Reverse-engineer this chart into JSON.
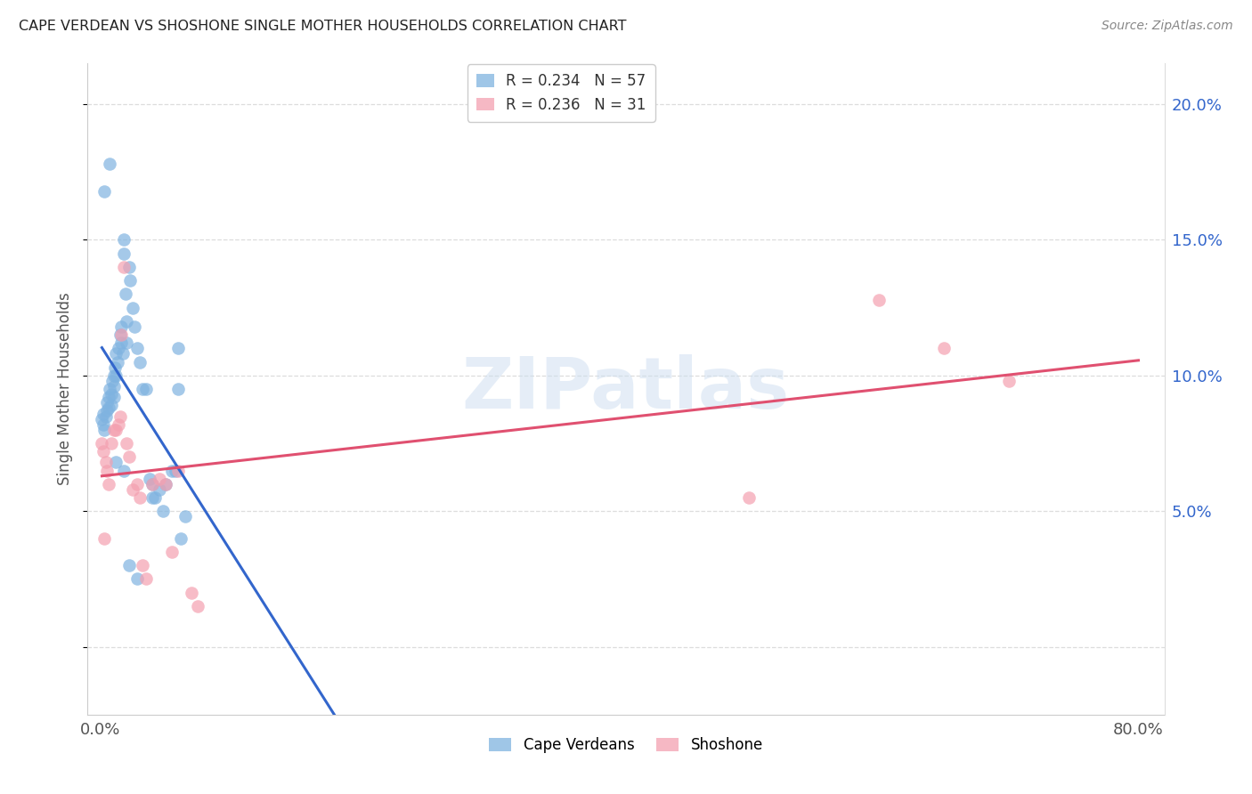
{
  "title": "CAPE VERDEAN VS SHOSHONE SINGLE MOTHER HOUSEHOLDS CORRELATION CHART",
  "source": "Source: ZipAtlas.com",
  "ylabel": "Single Mother Households",
  "xlim": [
    -0.01,
    0.82
  ],
  "ylim": [
    -0.025,
    0.215
  ],
  "yticks": [
    0.0,
    0.05,
    0.1,
    0.15,
    0.2
  ],
  "yticklabels_right": [
    "",
    "5.0%",
    "10.0%",
    "15.0%",
    "20.0%"
  ],
  "xtick_positions": [
    0.0,
    0.2,
    0.4,
    0.6,
    0.8
  ],
  "xticklabels": [
    "0.0%",
    "",
    "",
    "",
    "80.0%"
  ],
  "cape_verdean_color": "#7fb3e0",
  "shoshone_color": "#f4a0b0",
  "cape_verdean_line_color": "#3366cc",
  "shoshone_line_color": "#e05070",
  "R_cv": "0.234",
  "N_cv": "57",
  "R_sh": "0.236",
  "N_sh": "31",
  "watermark": "ZIPatlas",
  "cv_x": [
    0.001,
    0.002,
    0.002,
    0.003,
    0.004,
    0.005,
    0.005,
    0.006,
    0.006,
    0.007,
    0.008,
    0.008,
    0.009,
    0.01,
    0.01,
    0.01,
    0.011,
    0.012,
    0.012,
    0.013,
    0.014,
    0.015,
    0.016,
    0.016,
    0.017,
    0.018,
    0.018,
    0.019,
    0.02,
    0.02,
    0.022,
    0.023,
    0.025,
    0.026,
    0.028,
    0.03,
    0.032,
    0.035,
    0.038,
    0.04,
    0.042,
    0.045,
    0.048,
    0.05,
    0.055,
    0.058,
    0.06,
    0.062,
    0.065,
    0.003,
    0.007,
    0.012,
    0.018,
    0.022,
    0.028,
    0.06,
    0.04
  ],
  "cv_y": [
    0.084,
    0.082,
    0.086,
    0.08,
    0.085,
    0.09,
    0.087,
    0.088,
    0.092,
    0.095,
    0.089,
    0.093,
    0.098,
    0.092,
    0.096,
    0.1,
    0.103,
    0.1,
    0.108,
    0.105,
    0.11,
    0.115,
    0.112,
    0.118,
    0.108,
    0.145,
    0.15,
    0.13,
    0.12,
    0.112,
    0.14,
    0.135,
    0.125,
    0.118,
    0.11,
    0.105,
    0.095,
    0.095,
    0.062,
    0.06,
    0.055,
    0.058,
    0.05,
    0.06,
    0.065,
    0.065,
    0.11,
    0.04,
    0.048,
    0.168,
    0.178,
    0.068,
    0.065,
    0.03,
    0.025,
    0.095,
    0.055
  ],
  "sh_x": [
    0.001,
    0.002,
    0.003,
    0.004,
    0.005,
    0.006,
    0.008,
    0.01,
    0.012,
    0.014,
    0.015,
    0.016,
    0.018,
    0.02,
    0.022,
    0.025,
    0.028,
    0.03,
    0.032,
    0.035,
    0.04,
    0.045,
    0.05,
    0.055,
    0.06,
    0.07,
    0.075,
    0.6,
    0.65,
    0.7,
    0.5
  ],
  "sh_y": [
    0.075,
    0.072,
    0.04,
    0.068,
    0.065,
    0.06,
    0.075,
    0.08,
    0.08,
    0.082,
    0.085,
    0.115,
    0.14,
    0.075,
    0.07,
    0.058,
    0.06,
    0.055,
    0.03,
    0.025,
    0.06,
    0.062,
    0.06,
    0.035,
    0.065,
    0.02,
    0.015,
    0.128,
    0.11,
    0.098,
    0.055
  ]
}
